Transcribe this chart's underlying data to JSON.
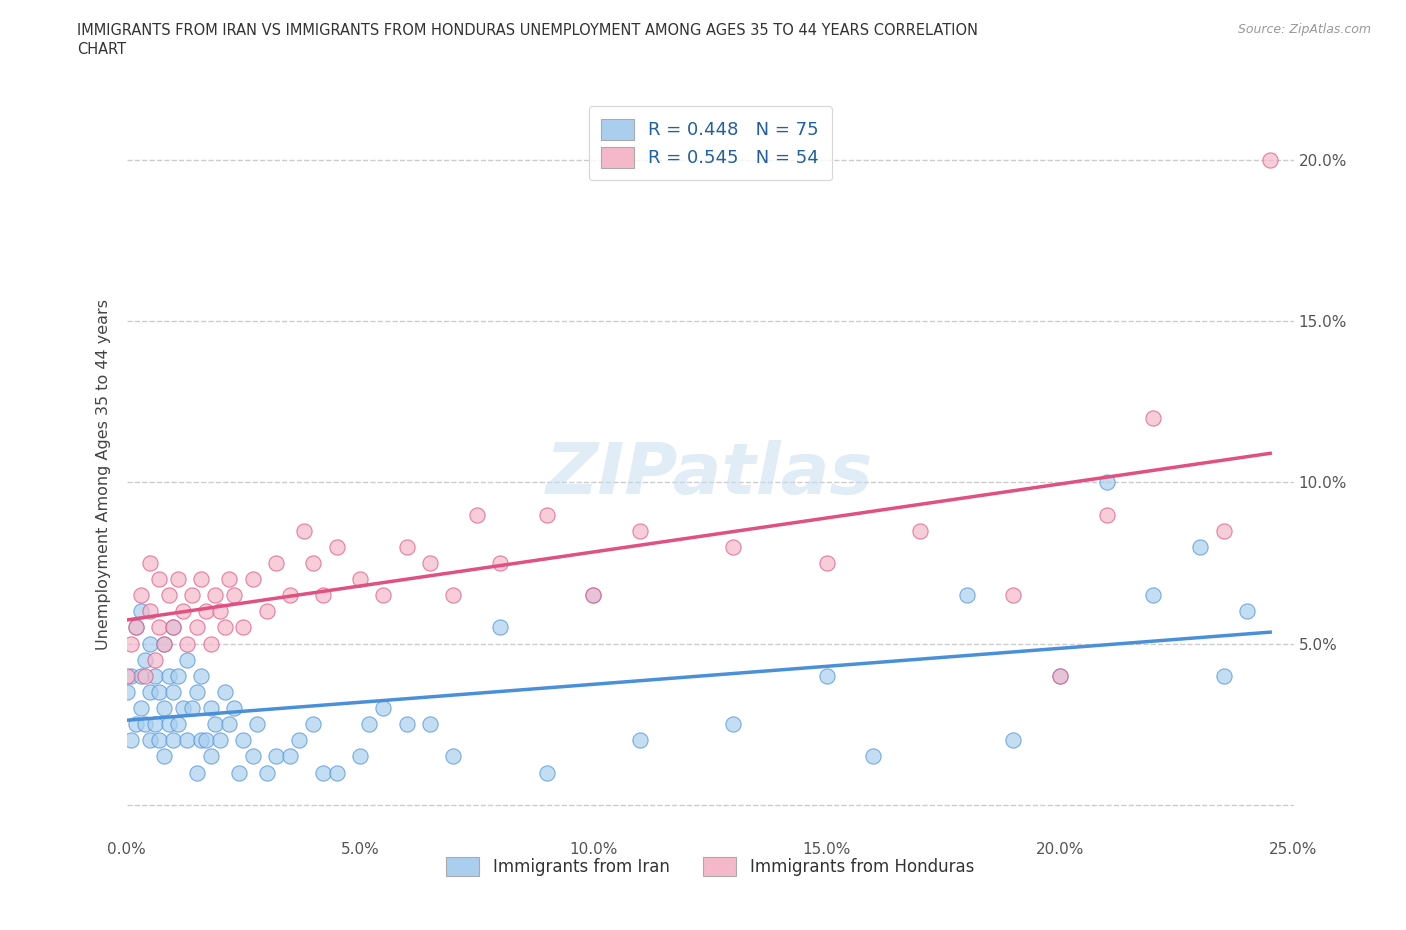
{
  "title": "IMMIGRANTS FROM IRAN VS IMMIGRANTS FROM HONDURAS UNEMPLOYMENT AMONG AGES 35 TO 44 YEARS CORRELATION\nCHART",
  "source": "Source: ZipAtlas.com",
  "ylabel": "Unemployment Among Ages 35 to 44 years",
  "xlim": [
    0.0,
    0.25
  ],
  "ylim": [
    -0.01,
    0.215
  ],
  "xticks": [
    0.0,
    0.05,
    0.1,
    0.15,
    0.2,
    0.25
  ],
  "xticklabels": [
    "0.0%",
    "5.0%",
    "10.0%",
    "15.0%",
    "20.0%",
    "25.0%"
  ],
  "yticks": [
    0.0,
    0.05,
    0.1,
    0.15,
    0.2
  ],
  "right_yticks": [
    0.05,
    0.1,
    0.15,
    0.2
  ],
  "right_yticklabels": [
    "5.0%",
    "10.0%",
    "15.0%",
    "20.0%"
  ],
  "iran_color": "#aacfee",
  "iran_color_dark": "#4a90d9",
  "honduras_color": "#f5b8cb",
  "honduras_color_dark": "#e05080",
  "iran_R": 0.448,
  "iran_N": 75,
  "honduras_R": 0.545,
  "honduras_N": 54,
  "legend_label_color": "#2060a0",
  "grid_color": "#cccccc",
  "iran_scatter_x": [
    0.0,
    0.001,
    0.001,
    0.002,
    0.002,
    0.003,
    0.003,
    0.003,
    0.004,
    0.004,
    0.005,
    0.005,
    0.005,
    0.006,
    0.006,
    0.007,
    0.007,
    0.008,
    0.008,
    0.008,
    0.009,
    0.009,
    0.01,
    0.01,
    0.01,
    0.011,
    0.011,
    0.012,
    0.013,
    0.013,
    0.014,
    0.015,
    0.015,
    0.016,
    0.016,
    0.017,
    0.018,
    0.018,
    0.019,
    0.02,
    0.021,
    0.022,
    0.023,
    0.024,
    0.025,
    0.027,
    0.028,
    0.03,
    0.032,
    0.035,
    0.037,
    0.04,
    0.042,
    0.045,
    0.05,
    0.052,
    0.055,
    0.06,
    0.065,
    0.07,
    0.08,
    0.09,
    0.1,
    0.11,
    0.13,
    0.15,
    0.16,
    0.18,
    0.19,
    0.2,
    0.21,
    0.22,
    0.23,
    0.235,
    0.24
  ],
  "iran_scatter_y": [
    0.035,
    0.02,
    0.04,
    0.025,
    0.055,
    0.03,
    0.04,
    0.06,
    0.025,
    0.045,
    0.02,
    0.035,
    0.05,
    0.025,
    0.04,
    0.02,
    0.035,
    0.015,
    0.03,
    0.05,
    0.025,
    0.04,
    0.02,
    0.035,
    0.055,
    0.025,
    0.04,
    0.03,
    0.02,
    0.045,
    0.03,
    0.01,
    0.035,
    0.02,
    0.04,
    0.02,
    0.015,
    0.03,
    0.025,
    0.02,
    0.035,
    0.025,
    0.03,
    0.01,
    0.02,
    0.015,
    0.025,
    0.01,
    0.015,
    0.015,
    0.02,
    0.025,
    0.01,
    0.01,
    0.015,
    0.025,
    0.03,
    0.025,
    0.025,
    0.015,
    0.055,
    0.01,
    0.065,
    0.02,
    0.025,
    0.04,
    0.015,
    0.065,
    0.02,
    0.04,
    0.1,
    0.065,
    0.08,
    0.04,
    0.06
  ],
  "honduras_scatter_x": [
    0.0,
    0.001,
    0.002,
    0.003,
    0.004,
    0.005,
    0.005,
    0.006,
    0.007,
    0.007,
    0.008,
    0.009,
    0.01,
    0.011,
    0.012,
    0.013,
    0.014,
    0.015,
    0.016,
    0.017,
    0.018,
    0.019,
    0.02,
    0.021,
    0.022,
    0.023,
    0.025,
    0.027,
    0.03,
    0.032,
    0.035,
    0.038,
    0.04,
    0.042,
    0.045,
    0.05,
    0.055,
    0.06,
    0.065,
    0.07,
    0.075,
    0.08,
    0.09,
    0.1,
    0.11,
    0.13,
    0.15,
    0.17,
    0.19,
    0.2,
    0.21,
    0.22,
    0.235,
    0.245
  ],
  "honduras_scatter_y": [
    0.04,
    0.05,
    0.055,
    0.065,
    0.04,
    0.06,
    0.075,
    0.045,
    0.055,
    0.07,
    0.05,
    0.065,
    0.055,
    0.07,
    0.06,
    0.05,
    0.065,
    0.055,
    0.07,
    0.06,
    0.05,
    0.065,
    0.06,
    0.055,
    0.07,
    0.065,
    0.055,
    0.07,
    0.06,
    0.075,
    0.065,
    0.085,
    0.075,
    0.065,
    0.08,
    0.07,
    0.065,
    0.08,
    0.075,
    0.065,
    0.09,
    0.075,
    0.09,
    0.065,
    0.085,
    0.08,
    0.075,
    0.085,
    0.065,
    0.04,
    0.09,
    0.12,
    0.085,
    0.2
  ]
}
